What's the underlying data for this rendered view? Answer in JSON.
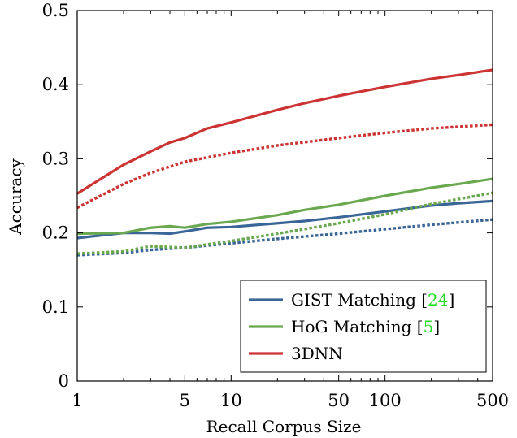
{
  "chart_data": {
    "type": "line",
    "xlabel": "Recall Corpus Size",
    "ylabel": "Accuracy",
    "xscale": "log",
    "xlim": [
      1,
      500
    ],
    "ylim": [
      0,
      0.5
    ],
    "x_ticks": [
      1,
      5,
      10,
      50,
      100,
      500
    ],
    "x_tick_labels": [
      "1",
      "5",
      "10",
      "50",
      "100",
      "500"
    ],
    "y_ticks": [
      0,
      0.1,
      0.2,
      0.3,
      0.4,
      0.5
    ],
    "y_tick_labels": [
      "0",
      "0.1",
      "0.2",
      "0.3",
      "0.4",
      "0.5"
    ],
    "grid": false,
    "legend_position": "bottom-right",
    "legend": [
      {
        "label": "GIST Matching [",
        "ref": "24",
        "suffix": "]",
        "color": "#3a6697"
      },
      {
        "label": "HoG Matching [",
        "ref": "5",
        "suffix": "]",
        "color": "#6aa84f"
      },
      {
        "label": "3DNN",
        "ref": "",
        "suffix": "",
        "color": "#cc3333"
      }
    ],
    "series": [
      {
        "color": "#3a6697",
        "style": "solid",
        "x": [
          1,
          2,
          3,
          4,
          5,
          7,
          10,
          20,
          30,
          50,
          100,
          200,
          300,
          500
        ],
        "y": [
          0.193,
          0.2,
          0.2,
          0.199,
          0.202,
          0.207,
          0.208,
          0.213,
          0.216,
          0.221,
          0.229,
          0.237,
          0.24,
          0.243
        ]
      },
      {
        "color": "#3a6697",
        "style": "dotted",
        "x": [
          1,
          2,
          3,
          5,
          10,
          20,
          50,
          100,
          200,
          500
        ],
        "y": [
          0.17,
          0.173,
          0.177,
          0.18,
          0.186,
          0.192,
          0.199,
          0.205,
          0.211,
          0.218
        ]
      },
      {
        "color": "#6aa84f",
        "style": "solid",
        "x": [
          1,
          2,
          3,
          4,
          5,
          7,
          10,
          20,
          30,
          50,
          100,
          200,
          300,
          500
        ],
        "y": [
          0.199,
          0.2,
          0.207,
          0.209,
          0.207,
          0.212,
          0.215,
          0.224,
          0.231,
          0.238,
          0.25,
          0.261,
          0.266,
          0.273
        ]
      },
      {
        "color": "#6aa84f",
        "style": "dotted",
        "x": [
          1,
          2,
          3,
          5,
          10,
          20,
          50,
          100,
          200,
          500
        ],
        "y": [
          0.172,
          0.175,
          0.182,
          0.18,
          0.189,
          0.199,
          0.213,
          0.225,
          0.239,
          0.254
        ]
      },
      {
        "color": "#cc3333",
        "style": "solid",
        "x": [
          1,
          2,
          3,
          4,
          5,
          7,
          10,
          20,
          30,
          50,
          100,
          200,
          300,
          500
        ],
        "y": [
          0.253,
          0.292,
          0.31,
          0.322,
          0.328,
          0.341,
          0.349,
          0.366,
          0.375,
          0.385,
          0.397,
          0.408,
          0.413,
          0.42
        ]
      },
      {
        "color": "#cc3333",
        "style": "dotted",
        "x": [
          1,
          2,
          3,
          5,
          10,
          20,
          50,
          100,
          200,
          500
        ],
        "y": [
          0.234,
          0.266,
          0.281,
          0.296,
          0.308,
          0.318,
          0.328,
          0.335,
          0.341,
          0.346
        ]
      }
    ]
  }
}
